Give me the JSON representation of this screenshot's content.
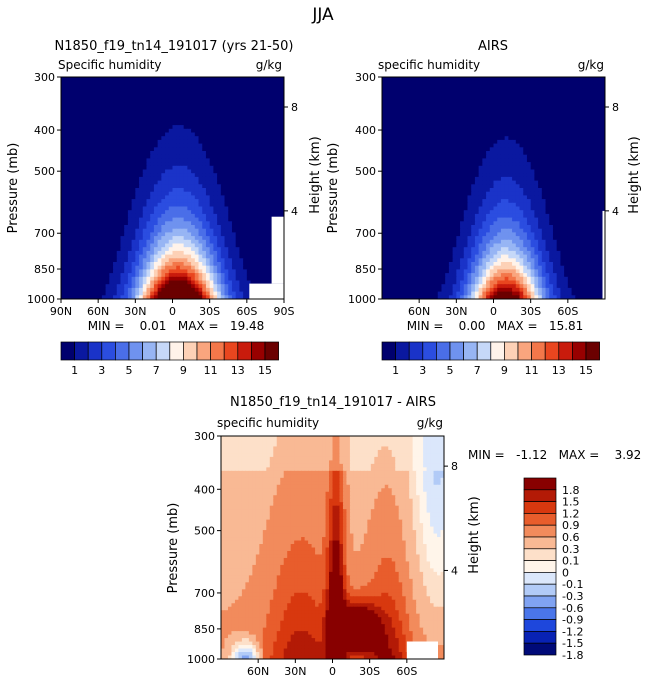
{
  "main_title": "JJA",
  "colors": {
    "humidity_scale": [
      "#00006e",
      "#0a18a0",
      "#1a33c8",
      "#2b4de0",
      "#4a6ee8",
      "#6f92ef",
      "#97b5f4",
      "#c6d8f8",
      "#fff3ea",
      "#fdd1b6",
      "#f9a57e",
      "#f3774a",
      "#e9461f",
      "#c91b0c",
      "#980000",
      "#6b0000"
    ],
    "diff_scale": [
      "#000a78",
      "#0822b4",
      "#1e47dc",
      "#4a76ea",
      "#80a3f2",
      "#b2cbf7",
      "#dbe7fb",
      "#fff5ea",
      "#fde0c9",
      "#f9b994",
      "#f28b5c",
      "#e85d2c",
      "#d8380f",
      "#b31a06",
      "#880000"
    ]
  },
  "chart_data": [
    {
      "type": "heatmap",
      "id": "model",
      "title": "N1850_f19_tn14_191017 (yrs 21-50)",
      "subtitle_left": "Specific humidity",
      "subtitle_right": "g/kg",
      "ylabel": "Pressure (mb)",
      "ylabel_right": "Height (km)",
      "yticks": [
        "300",
        "400",
        "500",
        "700",
        "850",
        "1000"
      ],
      "yticks_right": [
        "8",
        "4"
      ],
      "xticks": [
        "90N",
        "60N",
        "30N",
        "0",
        "30S",
        "60S",
        "90S"
      ],
      "stats": "MIN =    0.01   MAX =   19.48",
      "xlim": [
        90,
        -90
      ],
      "ylim": [
        1000,
        300
      ],
      "peak_lat": -5,
      "peak_value": 19.48,
      "min_value": 0.01
    },
    {
      "type": "heatmap",
      "id": "obs",
      "title": "AIRS",
      "subtitle_left": "specific humidity",
      "subtitle_right": "g/kg",
      "ylabel": "Pressure (mb)",
      "ylabel_right": "Height (km)",
      "yticks": [
        "300",
        "400",
        "500",
        "700",
        "850",
        "1000"
      ],
      "yticks_right": [
        "8",
        "4"
      ],
      "xticks": [
        "60N",
        "30N",
        "0",
        "30S",
        "60S"
      ],
      "stats": "MIN =    0.00   MAX =   15.81",
      "xlim": [
        90,
        -90
      ],
      "ylim": [
        1000,
        300
      ],
      "peak_lat": -10,
      "peak_value": 15.81,
      "min_value": 0.0
    },
    {
      "type": "heatmap",
      "id": "diff",
      "title": "N1850_f19_tn14_191017 - AIRS",
      "subtitle_left": "specific humidity",
      "subtitle_right": "g/kg",
      "ylabel": "Pressure (mb)",
      "ylabel_right": "Height (km)",
      "yticks": [
        "300",
        "400",
        "500",
        "700",
        "850",
        "1000"
      ],
      "yticks_right": [
        "8",
        "4"
      ],
      "xticks": [
        "60N",
        "30N",
        "0",
        "30S",
        "60S"
      ],
      "stats": "MIN =   -1.12   MAX =    3.92",
      "xlim": [
        90,
        -90
      ],
      "ylim": [
        1000,
        300
      ],
      "min_value": -1.12,
      "max_value": 3.92
    }
  ],
  "colorbar_labels": [
    "1",
    "3",
    "5",
    "7",
    "9",
    "11",
    "13",
    "15"
  ],
  "diff_colorbar_labels": [
    "1.8",
    "1.5",
    "1.2",
    "0.9",
    "0.6",
    "0.3",
    "0.1",
    "0",
    "-0.1",
    "-0.3",
    "-0.6",
    "-0.9",
    "-1.2",
    "-1.5",
    "-1.8"
  ]
}
